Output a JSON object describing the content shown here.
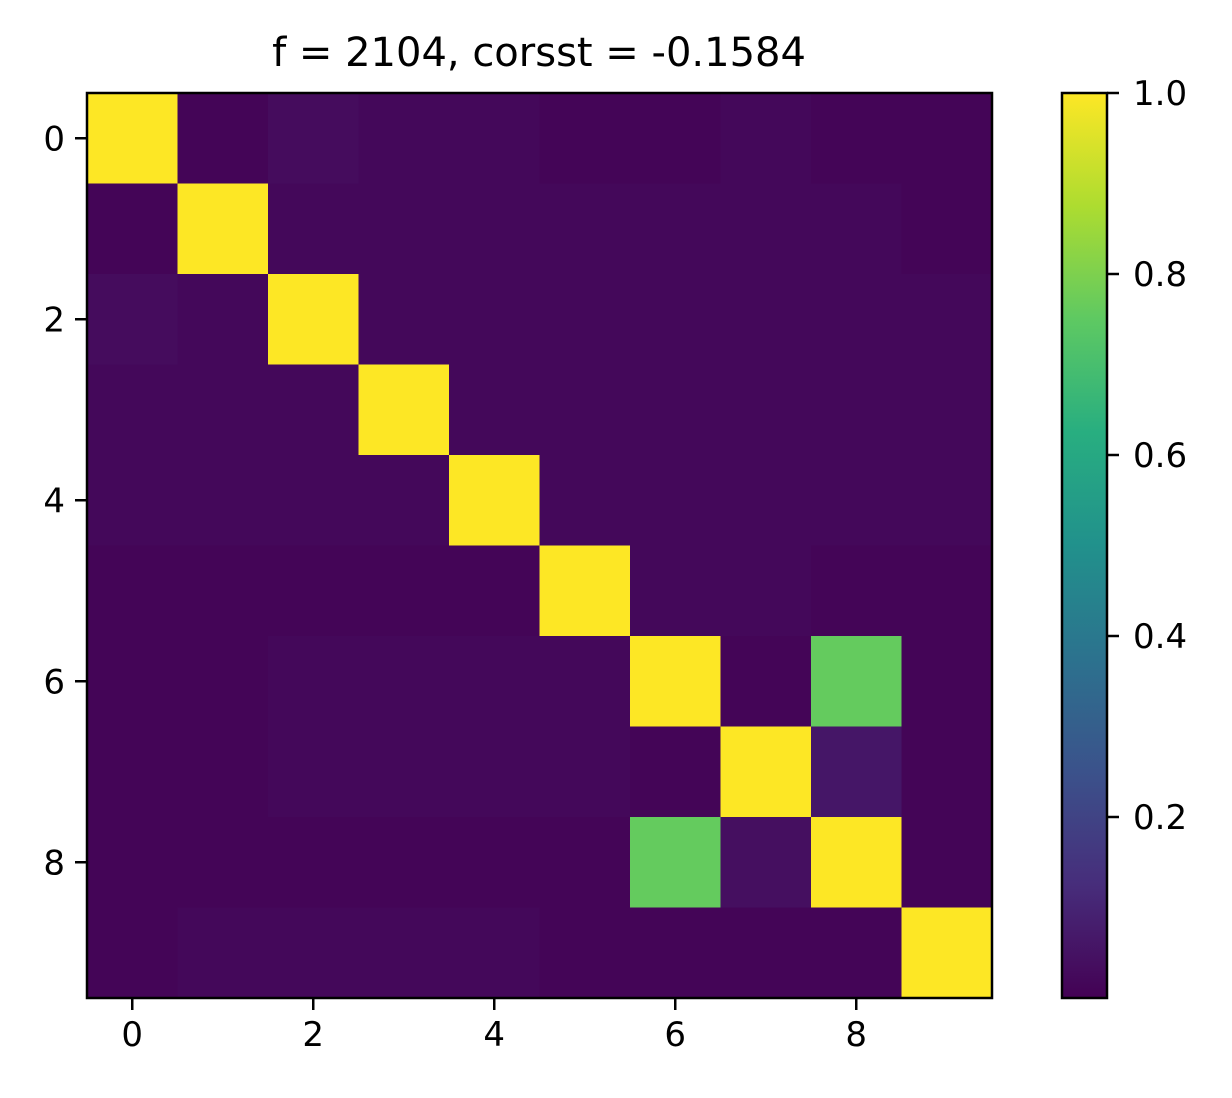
{
  "chart_data": {
    "type": "heatmap",
    "title": "f = 2104, corsst = -0.1584",
    "xlabel": "",
    "ylabel": "",
    "rows": 10,
    "cols": 10,
    "x_ticks": [
      0,
      2,
      4,
      6,
      8
    ],
    "x_tick_labels": [
      "0",
      "2",
      "4",
      "6",
      "8"
    ],
    "y_ticks": [
      0,
      2,
      4,
      6,
      8
    ],
    "y_tick_labels": [
      "0",
      "2",
      "4",
      "6",
      "8"
    ],
    "colormap": "viridis",
    "vmin": 0.0,
    "vmax": 1.0,
    "colorbar_ticks": [
      0.2,
      0.4,
      0.6,
      0.8,
      1.0
    ],
    "colorbar_tick_labels": [
      "0.2",
      "0.4",
      "0.6",
      "0.8",
      "1.0"
    ],
    "values": [
      [
        1.0,
        0.01,
        0.03,
        0.02,
        0.02,
        0.01,
        0.01,
        0.02,
        0.01,
        0.01
      ],
      [
        0.01,
        1.0,
        0.02,
        0.02,
        0.02,
        0.02,
        0.02,
        0.02,
        0.02,
        0.01
      ],
      [
        0.03,
        0.02,
        1.0,
        0.02,
        0.02,
        0.02,
        0.02,
        0.02,
        0.02,
        0.02
      ],
      [
        0.02,
        0.02,
        0.02,
        1.0,
        0.02,
        0.02,
        0.02,
        0.02,
        0.02,
        0.02
      ],
      [
        0.02,
        0.02,
        0.02,
        0.02,
        1.0,
        0.02,
        0.02,
        0.02,
        0.02,
        0.02
      ],
      [
        0.01,
        0.01,
        0.01,
        0.01,
        0.01,
        1.0,
        0.02,
        0.02,
        0.01,
        0.01
      ],
      [
        0.01,
        0.01,
        0.02,
        0.02,
        0.02,
        0.02,
        1.0,
        0.01,
        0.76,
        0.01
      ],
      [
        0.01,
        0.01,
        0.02,
        0.02,
        0.02,
        0.02,
        0.01,
        1.0,
        0.06,
        0.01
      ],
      [
        0.01,
        0.01,
        0.01,
        0.01,
        0.01,
        0.01,
        0.76,
        0.04,
        1.0,
        0.01
      ],
      [
        0.01,
        0.02,
        0.02,
        0.02,
        0.02,
        0.01,
        0.01,
        0.01,
        0.01,
        1.0
      ]
    ]
  }
}
